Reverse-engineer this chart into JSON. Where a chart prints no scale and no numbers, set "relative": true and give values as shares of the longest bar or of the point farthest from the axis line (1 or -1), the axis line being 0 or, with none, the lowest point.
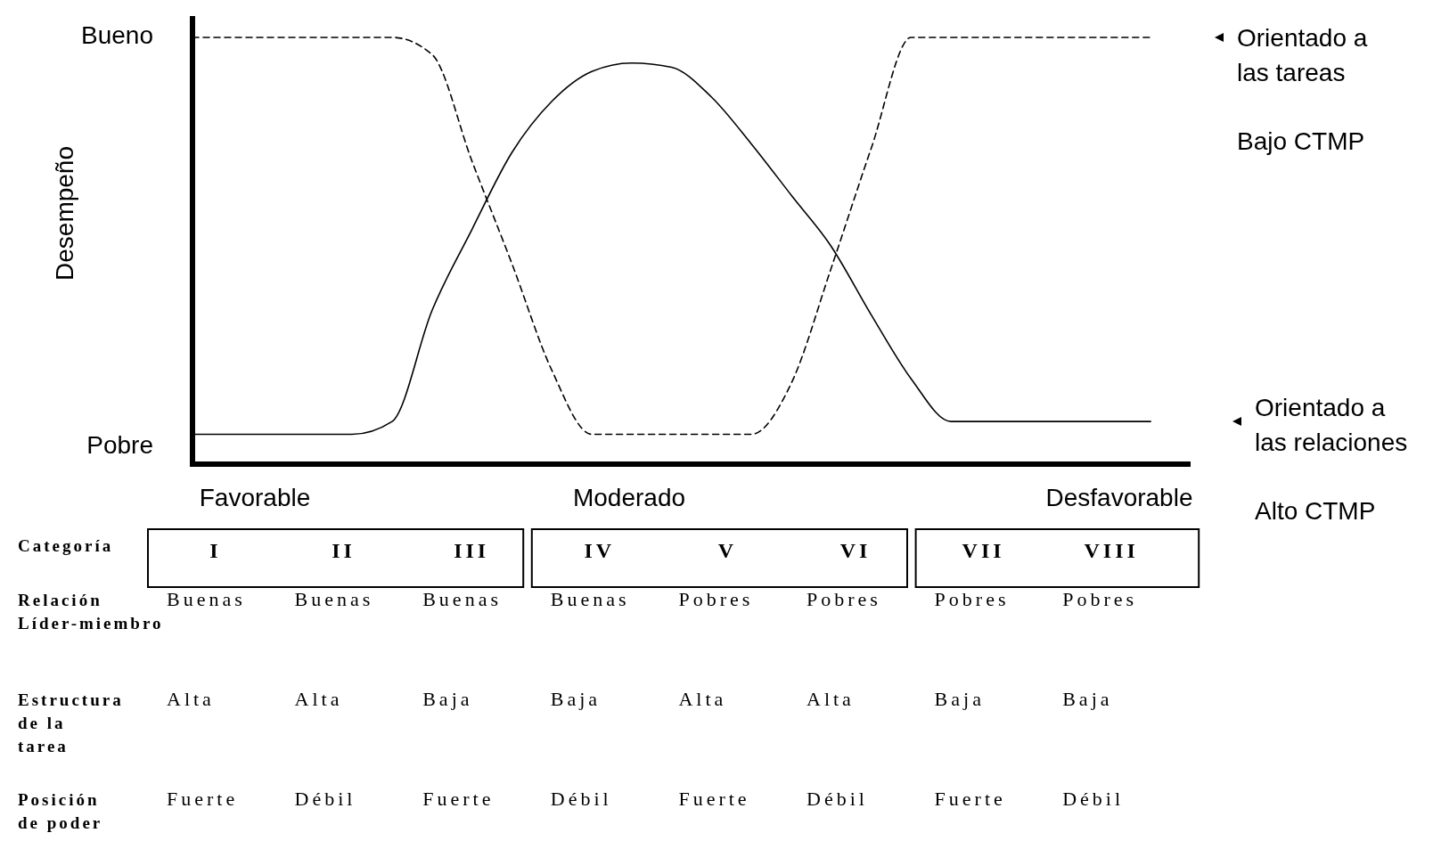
{
  "chart_data": [
    {
      "type": "line",
      "ylabel": "Desempeño",
      "relative": true,
      "categories": [
        null,
        null,
        null,
        null,
        null,
        null,
        null,
        null,
        null,
        null,
        null,
        null,
        null,
        null,
        null,
        null,
        null,
        null,
        null,
        null,
        null,
        null,
        null,
        null,
        null,
        null
      ],
      "series": [
        {
          "name": "Orientado a las tareas",
          "color": "#000000",
          "line_style": "dashed",
          "values": [
            1,
            1,
            1,
            1,
            1,
            1,
            0.96,
            0.71,
            0.47,
            0.22,
            0.07,
            0.07,
            0.07,
            0.07,
            0.07,
            0.19,
            0.46,
            0.74,
            1,
            1,
            1,
            1,
            1,
            1,
            1,
            null
          ]
        },
        {
          "name": "Orientado a las relaciones",
          "color": "#000000",
          "line_style": "solid",
          "values": [
            0.07,
            0.07,
            0.07,
            0.07,
            0.07,
            0.1,
            0.36,
            0.55,
            0.73,
            0.85,
            0.92,
            0.94,
            0.93,
            0.86,
            0.75,
            0.63,
            0.51,
            0.35,
            0.2,
            0.1,
            0.1,
            0.1,
            0.1,
            0.1,
            0.1,
            null
          ]
        }
      ],
      "annotations": [
        "Bueno",
        "Pobre",
        "Favorable",
        "Moderado",
        "Desfavorable",
        "Bajo CTMP",
        "Alto CTMP"
      ],
      "legend": "right"
    },
    {
      "type": "other",
      "categories": [
        "I",
        "II",
        "III",
        "IV",
        "V",
        "VI",
        "VII",
        "VIII"
      ],
      "y_categories": [
        "Categoría",
        "Relación Líder-miembro",
        "Estructura de la tarea",
        "Posición de poder"
      ],
      "cell_labels": [
        [
          "Buenas",
          "Buenas",
          "Buenas",
          "Buenas",
          "Pobres",
          "Pobres",
          "Pobres",
          "Pobres"
        ],
        [
          "Alta",
          "Alta",
          "Baja",
          "Baja",
          "Alta",
          "Alta",
          "Baja",
          "Baja"
        ],
        [
          "Fuerte",
          "Débil",
          "Fuerte",
          "Débil",
          "Fuerte",
          "Débil",
          "Fuerte",
          "Débil"
        ]
      ]
    }
  ]
}
